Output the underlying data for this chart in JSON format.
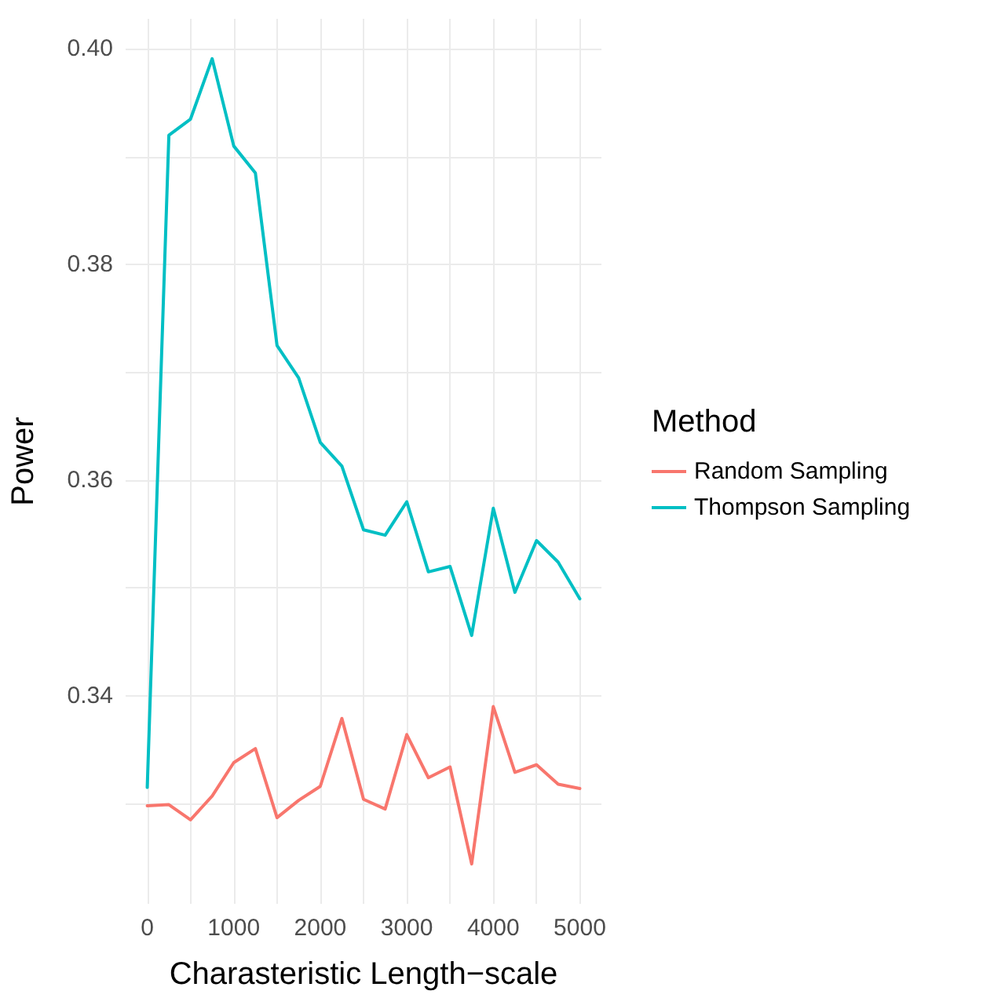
{
  "chart_data": {
    "type": "line",
    "xlabel": "Charasteristic Length−scale",
    "ylabel": "Power",
    "legend_title": "Method",
    "x": [
      0,
      250,
      500,
      750,
      1000,
      1250,
      1500,
      1750,
      2000,
      2250,
      2500,
      2750,
      3000,
      3250,
      3500,
      3750,
      4000,
      4250,
      4500,
      4750,
      5000
    ],
    "series": [
      {
        "name": "Random Sampling",
        "color": "#f8766d",
        "values": [
          0.3298,
          0.3299,
          0.3285,
          0.3307,
          0.3338,
          0.3351,
          0.3287,
          0.3303,
          0.3316,
          0.3379,
          0.3304,
          0.3295,
          0.3364,
          0.3324,
          0.3334,
          0.3244,
          0.339,
          0.3329,
          0.3336,
          0.3318,
          0.3314
        ]
      },
      {
        "name": "Thompson Sampling",
        "color": "#00bfc4",
        "values": [
          0.3315,
          0.392,
          0.3935,
          0.3991,
          0.391,
          0.3885,
          0.3725,
          0.3695,
          0.3635,
          0.3613,
          0.3554,
          0.3549,
          0.358,
          0.3515,
          0.352,
          0.3456,
          0.3574,
          0.3496,
          0.3544,
          0.3524,
          0.349
        ]
      }
    ],
    "xlim": [
      -250,
      5250
    ],
    "ylim": [
      0.3207,
      0.4028
    ],
    "xticks": [
      0,
      {
        "value": 500,
        "label": null
      },
      1000,
      {
        "value": 1500,
        "label": null
      },
      2000,
      {
        "value": 2500,
        "label": null
      },
      3000,
      {
        "value": 3500,
        "label": null
      },
      4000,
      {
        "value": 4500,
        "label": null
      },
      5000
    ],
    "yticks": [
      {
        "value": 0.33,
        "label": null
      },
      {
        "value": 0.34,
        "label": "0.34"
      },
      {
        "value": 0.35,
        "label": null
      },
      {
        "value": 0.36,
        "label": "0.36"
      },
      {
        "value": 0.37,
        "label": null
      },
      {
        "value": 0.38,
        "label": "0.38"
      },
      {
        "value": 0.39,
        "label": null
      },
      {
        "value": 0.4,
        "label": "0.40"
      }
    ],
    "grid": true,
    "legend": "right",
    "marker": "none",
    "line_style": "solid"
  }
}
